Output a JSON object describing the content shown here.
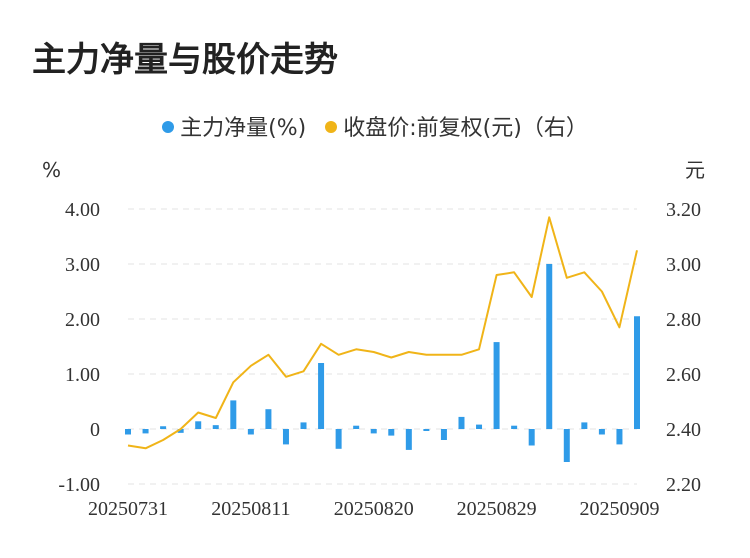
{
  "title": "主力净量与股价走势",
  "legend": {
    "series1": "主力净量(%)",
    "series2": "收盘价:前复权(元)（右）"
  },
  "colors": {
    "bar": "#2f9be8",
    "line": "#f0b418",
    "grid": "#e3e3e3"
  },
  "chart_data": {
    "type": "bar",
    "left_axis": {
      "unit": "%",
      "ylim": [
        -1.0,
        4.0
      ],
      "ticks": [
        "4.00",
        "3.00",
        "2.00",
        "1.00",
        "0",
        "-1.00"
      ]
    },
    "right_axis": {
      "unit": "元",
      "ylim": [
        2.2,
        3.2
      ],
      "ticks": [
        "3.20",
        "3.00",
        "2.80",
        "2.60",
        "2.40",
        "2.20"
      ]
    },
    "x_tick_labels": [
      "20250731",
      "20250811",
      "20250820",
      "20250829",
      "20250909"
    ],
    "x_tick_indices": [
      0,
      7,
      14,
      21,
      28
    ],
    "grid": true,
    "legend_position": "top-center",
    "series": [
      {
        "name": "主力净量(%)",
        "type": "bar",
        "axis": "left",
        "values": [
          -0.1,
          -0.08,
          0.05,
          -0.07,
          0.14,
          0.07,
          0.52,
          -0.1,
          0.36,
          -0.28,
          0.12,
          1.2,
          -0.36,
          0.06,
          -0.08,
          -0.12,
          -0.38,
          -0.03,
          -0.2,
          0.22,
          0.08,
          1.58,
          0.06,
          -0.3,
          3.0,
          -0.6,
          0.12,
          -0.1,
          -0.28,
          2.05
        ]
      },
      {
        "name": "收盘价:前复权(元)（右）",
        "type": "line",
        "axis": "right",
        "values": [
          2.34,
          2.33,
          2.36,
          2.4,
          2.46,
          2.44,
          2.57,
          2.63,
          2.67,
          2.59,
          2.61,
          2.71,
          2.67,
          2.69,
          2.68,
          2.66,
          2.68,
          2.67,
          2.67,
          2.67,
          2.69,
          2.96,
          2.97,
          2.88,
          3.17,
          2.95,
          2.97,
          2.9,
          2.77,
          3.05
        ]
      }
    ]
  }
}
